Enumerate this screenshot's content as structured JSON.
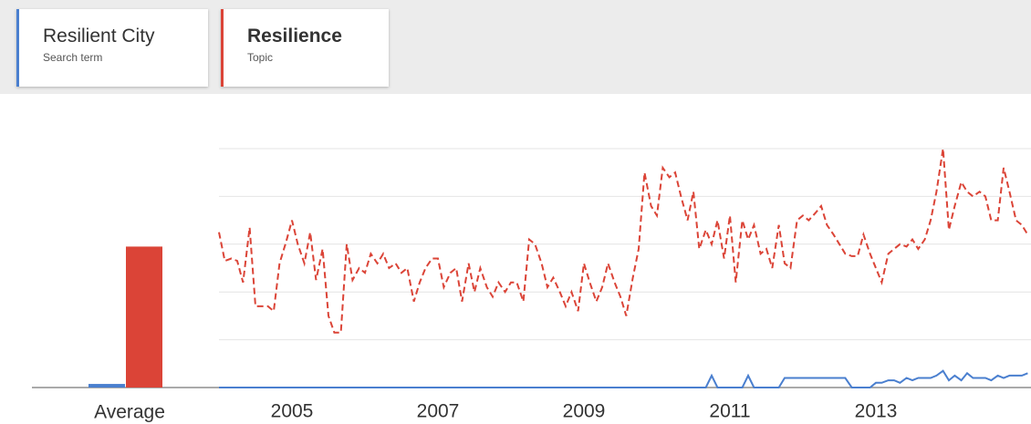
{
  "chart_data": {
    "type": "line",
    "average_label": "Average",
    "xlim": [
      2004,
      2015.125
    ],
    "xticks": [
      2005,
      2007,
      2009,
      2011,
      2013
    ],
    "ylim": [
      0,
      100
    ],
    "yticks": [
      0,
      20,
      40,
      60,
      80,
      100
    ],
    "grid": true,
    "x": [
      2004,
      2004.08,
      2004.17,
      2004.25,
      2004.33,
      2004.42,
      2004.5,
      2004.58,
      2004.67,
      2004.75,
      2004.83,
      2004.92,
      2005,
      2005.08,
      2005.17,
      2005.25,
      2005.33,
      2005.42,
      2005.5,
      2005.58,
      2005.67,
      2005.75,
      2005.83,
      2005.92,
      2006,
      2006.08,
      2006.17,
      2006.25,
      2006.33,
      2006.42,
      2006.5,
      2006.58,
      2006.67,
      2006.75,
      2006.83,
      2006.92,
      2007,
      2007.08,
      2007.17,
      2007.25,
      2007.33,
      2007.42,
      2007.5,
      2007.58,
      2007.67,
      2007.75,
      2007.83,
      2007.92,
      2008,
      2008.08,
      2008.17,
      2008.25,
      2008.33,
      2008.42,
      2008.5,
      2008.58,
      2008.67,
      2008.75,
      2008.83,
      2008.92,
      2009,
      2009.08,
      2009.17,
      2009.25,
      2009.33,
      2009.42,
      2009.5,
      2009.58,
      2009.67,
      2009.75,
      2009.83,
      2009.92,
      2010,
      2010.08,
      2010.17,
      2010.25,
      2010.33,
      2010.42,
      2010.5,
      2010.58,
      2010.67,
      2010.75,
      2010.83,
      2010.92,
      2011,
      2011.08,
      2011.17,
      2011.25,
      2011.33,
      2011.42,
      2011.5,
      2011.58,
      2011.67,
      2011.75,
      2011.83,
      2011.92,
      2012,
      2012.08,
      2012.17,
      2012.25,
      2012.33,
      2012.42,
      2012.5,
      2012.58,
      2012.67,
      2012.75,
      2012.83,
      2012.92,
      2013,
      2013.08,
      2013.17,
      2013.25,
      2013.33,
      2013.42,
      2013.5,
      2013.58,
      2013.67,
      2013.75,
      2013.83,
      2013.92,
      2014,
      2014.08,
      2014.17,
      2014.25,
      2014.33,
      2014.42,
      2014.5,
      2014.58,
      2014.67,
      2014.75,
      2014.83,
      2014.92,
      2015,
      2015.08
    ],
    "series": [
      {
        "name": "Resilient City",
        "kind": "Search term",
        "color": "#4a7fcf",
        "dashed": false,
        "average": 1.5,
        "values": [
          0,
          0,
          0,
          0,
          0,
          0,
          0,
          0,
          0,
          0,
          0,
          0,
          0,
          0,
          0,
          0,
          0,
          0,
          0,
          0,
          0,
          0,
          0,
          0,
          0,
          0,
          0,
          0,
          0,
          0,
          0,
          0,
          0,
          0,
          0,
          0,
          0,
          0,
          0,
          0,
          0,
          0,
          0,
          0,
          0,
          0,
          0,
          0,
          0,
          0,
          0,
          0,
          0,
          0,
          0,
          0,
          0,
          0,
          0,
          0,
          0,
          0,
          0,
          0,
          0,
          0,
          0,
          0,
          0,
          0,
          0,
          0,
          0,
          0,
          0,
          0,
          0,
          0,
          0,
          0,
          0,
          5,
          0,
          0,
          0,
          0,
          0,
          5,
          0,
          0,
          0,
          0,
          0,
          4,
          4,
          4,
          4,
          4,
          4,
          4,
          4,
          4,
          4,
          4,
          0,
          0,
          0,
          0,
          2,
          2,
          3,
          3,
          2,
          4,
          3,
          4,
          4,
          4,
          5,
          7,
          3,
          5,
          3,
          6,
          4,
          4,
          4,
          3,
          5,
          4,
          5,
          5,
          5,
          6
        ]
      },
      {
        "name": "Resilience",
        "kind": "Topic",
        "color": "#db4437",
        "dashed": true,
        "average": 59,
        "values": [
          65,
          53,
          54,
          53,
          44,
          67,
          34,
          34,
          34,
          32,
          52,
          61,
          70,
          60,
          52,
          65,
          45,
          58,
          30,
          23,
          23,
          60,
          45,
          50,
          48,
          56,
          52,
          56,
          50,
          52,
          48,
          50,
          36,
          44,
          50,
          54,
          54,
          42,
          48,
          50,
          36,
          52,
          40,
          50,
          42,
          38,
          44,
          40,
          44,
          44,
          36,
          62,
          60,
          52,
          42,
          46,
          40,
          34,
          40,
          32,
          52,
          44,
          36,
          42,
          52,
          44,
          38,
          30,
          46,
          58,
          90,
          76,
          72,
          92,
          88,
          90,
          80,
          70,
          82,
          58,
          66,
          60,
          70,
          54,
          72,
          44,
          70,
          62,
          68,
          56,
          58,
          50,
          68,
          52,
          50,
          70,
          72,
          70,
          73,
          76,
          68,
          64,
          60,
          56,
          55,
          55,
          64,
          56,
          50,
          44,
          56,
          58,
          60,
          59,
          62,
          58,
          62,
          70,
          82,
          100,
          66,
          76,
          86,
          82,
          80,
          82,
          80,
          70,
          70,
          92,
          82,
          70,
          68,
          64
        ]
      }
    ]
  }
}
